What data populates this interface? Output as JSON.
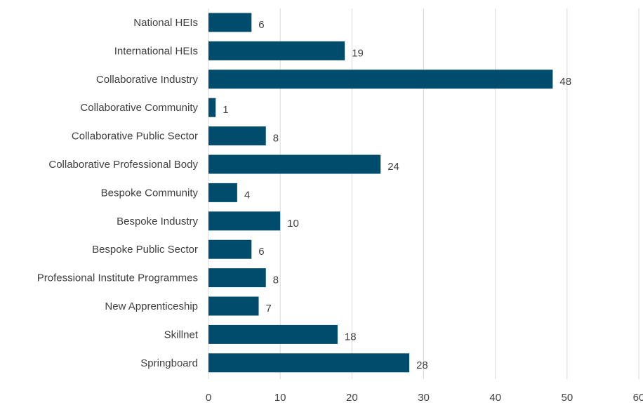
{
  "chart_data": {
    "type": "bar",
    "orientation": "horizontal",
    "categories": [
      "National HEIs",
      "International HEIs",
      "Collaborative Industry",
      "Collaborative Community",
      "Collaborative Public Sector",
      "Collaborative Professional Body",
      "Bespoke Community",
      "Bespoke Industry",
      "Bespoke Public Sector",
      "Professional Institute Programmes",
      "New Apprenticeship",
      "Skillnet",
      "Springboard"
    ],
    "values": [
      6,
      19,
      48,
      1,
      8,
      24,
      4,
      10,
      6,
      8,
      7,
      18,
      28
    ],
    "value_labels": [
      "6",
      "19",
      "48",
      "1",
      "8",
      "24",
      "4",
      "10",
      "6",
      "8",
      "7",
      "18",
      "28"
    ],
    "xlim": [
      0,
      60
    ],
    "xticks": [
      "0",
      "10",
      "20",
      "30",
      "40",
      "50",
      "60"
    ],
    "grid": true,
    "legend": false,
    "colors": {
      "bar": "#004c6d",
      "grid": "#d9d9d9",
      "text": "#404040"
    }
  }
}
